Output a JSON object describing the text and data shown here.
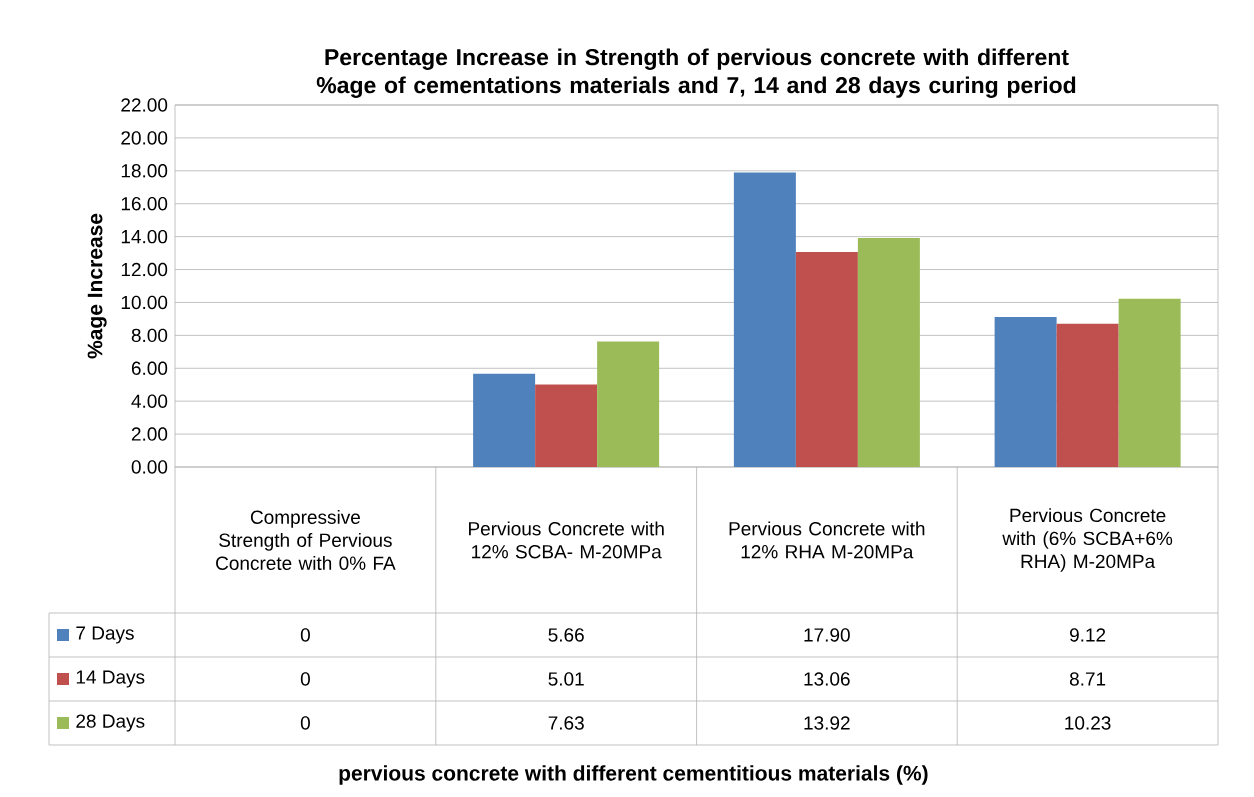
{
  "chart_data": {
    "type": "bar",
    "title": "Percentage Increase in Strength of pervious concrete with different %age of cementations materials and 7, 14 and 28 days curing period",
    "annotations": [
      "pervious concrete with different cementitious materials (%)"
    ],
    "ylabel": "%age  Increase",
    "categories": [
      "Compressive Strength of Pervious Concrete with 0% FA",
      "Pervious Concrete with 12% SCBA- M-20MPa",
      "Pervious Concrete with 12% RHA M-20MPa",
      "Pervious Concrete with (6% SCBA+6% RHA) M-20MPa"
    ],
    "series": [
      {
        "name": "7 Days",
        "color": "#4f81bd",
        "values": [
          0,
          5.66,
          17.9,
          9.12
        ],
        "value_labels": [
          "0",
          "5.66",
          "17.90",
          "9.12"
        ]
      },
      {
        "name": "14 Days",
        "color": "#c0504d",
        "values": [
          0,
          5.01,
          13.06,
          8.71
        ],
        "value_labels": [
          "0",
          "5.01",
          "13.06",
          "8.71"
        ]
      },
      {
        "name": "28 Days",
        "color": "#9bbb59",
        "values": [
          0,
          7.63,
          13.92,
          10.23
        ],
        "value_labels": [
          "0",
          "7.63",
          "13.92",
          "10.23"
        ]
      }
    ],
    "ylim": [
      0,
      22
    ],
    "yticks": [
      {
        "value": 0,
        "label": "0.00"
      },
      {
        "value": 2,
        "label": "2.00"
      },
      {
        "value": 4,
        "label": "4.00"
      },
      {
        "value": 6,
        "label": "6.00"
      },
      {
        "value": 8,
        "label": "8.00"
      },
      {
        "value": 10,
        "label": "10.00"
      },
      {
        "value": 12,
        "label": "12.00"
      },
      {
        "value": 14,
        "label": "14.00"
      },
      {
        "value": 16,
        "label": "16.00"
      },
      {
        "value": 18,
        "label": "18.00"
      },
      {
        "value": 20,
        "label": "20.00"
      },
      {
        "value": 22,
        "label": "22.00"
      }
    ],
    "grid": "y",
    "legend": "bottom"
  }
}
